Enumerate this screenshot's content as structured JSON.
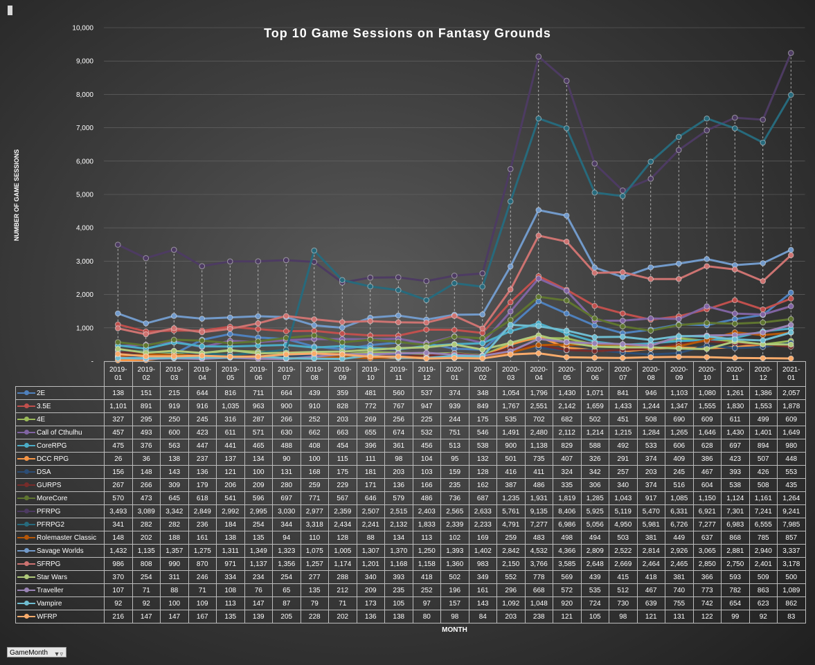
{
  "chart_data": {
    "type": "line",
    "title": "Top 10 Game Sessions on Fantasy Grounds",
    "xlabel": "MONTH",
    "ylabel": "NUMBER OF GAME SESSIONS",
    "ylim": [
      0,
      10000
    ],
    "yticks": [
      "-",
      "1,000",
      "2,000",
      "3,000",
      "4,000",
      "5,000",
      "6,000",
      "7,000",
      "8,000",
      "9,000",
      "10,000"
    ],
    "grid": true,
    "legend": "table-below",
    "categories": [
      [
        "2019-",
        "01"
      ],
      [
        "2019-",
        "02"
      ],
      [
        "2019-",
        "03"
      ],
      [
        "2019-",
        "04"
      ],
      [
        "2019-",
        "05"
      ],
      [
        "2019-",
        "06"
      ],
      [
        "2019-",
        "07"
      ],
      [
        "2019-",
        "08"
      ],
      [
        "2019-",
        "09"
      ],
      [
        "2019-",
        "10"
      ],
      [
        "2019-",
        "11"
      ],
      [
        "2019-",
        "12"
      ],
      [
        "2020-",
        "01"
      ],
      [
        "2020-",
        "02"
      ],
      [
        "2020-",
        "03"
      ],
      [
        "2020-",
        "04"
      ],
      [
        "2020-",
        "05"
      ],
      [
        "2020-",
        "06"
      ],
      [
        "2020-",
        "07"
      ],
      [
        "2020-",
        "08"
      ],
      [
        "2020-",
        "09"
      ],
      [
        "2020-",
        "10"
      ],
      [
        "2020-",
        "11"
      ],
      [
        "2020-",
        "12"
      ],
      [
        "2021-",
        "01"
      ]
    ],
    "series": [
      {
        "name": "2E",
        "color": "#4f81bd",
        "values": [
          138,
          151,
          215,
          644,
          816,
          711,
          664,
          439,
          359,
          481,
          560,
          537,
          374,
          348,
          1054,
          1796,
          1430,
          1071,
          841,
          946,
          1103,
          1080,
          1261,
          1386,
          2057
        ]
      },
      {
        "name": "3.5E",
        "color": "#c0504d",
        "values": [
          1101,
          891,
          919,
          916,
          1035,
          963,
          900,
          910,
          828,
          772,
          767,
          947,
          939,
          849,
          1767,
          2551,
          2142,
          1659,
          1433,
          1244,
          1347,
          1555,
          1830,
          1553,
          1878
        ]
      },
      {
        "name": "4E",
        "color": "#9bbb59",
        "values": [
          327,
          295,
          250,
          245,
          316,
          287,
          266,
          252,
          203,
          269,
          256,
          225,
          244,
          175,
          535,
          702,
          682,
          502,
          451,
          508,
          690,
          609,
          611,
          499,
          609
        ]
      },
      {
        "name": "Call of Cthulhu",
        "color": "#8064a2",
        "values": [
          457,
          493,
          600,
          423,
          611,
          571,
          630,
          662,
          663,
          655,
          674,
          532,
          751,
          546,
          1491,
          2480,
          2112,
          1214,
          1215,
          1284,
          1265,
          1646,
          1430,
          1401,
          1649
        ]
      },
      {
        "name": "CoreRPG",
        "color": "#4bacc6",
        "values": [
          475,
          376,
          563,
          447,
          441,
          465,
          488,
          408,
          454,
          396,
          361,
          456,
          513,
          538,
          900,
          1138,
          829,
          588,
          492,
          533,
          606,
          628,
          697,
          894,
          980
        ]
      },
      {
        "name": "DCC RPG",
        "color": "#f79646",
        "values": [
          26,
          36,
          138,
          237,
          137,
          134,
          90,
          100,
          115,
          111,
          98,
          104,
          95,
          132,
          501,
          735,
          407,
          326,
          291,
          374,
          409,
          386,
          423,
          507,
          448
        ]
      },
      {
        "name": "DSA",
        "color": "#2c4d75",
        "values": [
          156,
          148,
          143,
          136,
          121,
          100,
          131,
          168,
          175,
          181,
          203,
          103,
          159,
          128,
          416,
          411,
          324,
          342,
          257,
          203,
          245,
          467,
          393,
          426,
          553
        ]
      },
      {
        "name": "GURPS",
        "color": "#772c2a",
        "values": [
          267,
          266,
          309,
          179,
          206,
          209,
          280,
          259,
          229,
          171,
          136,
          166,
          235,
          162,
          387,
          486,
          335,
          306,
          340,
          374,
          516,
          604,
          538,
          508,
          435
        ]
      },
      {
        "name": "MoreCore",
        "color": "#5f7530",
        "values": [
          570,
          473,
          645,
          618,
          541,
          596,
          697,
          771,
          567,
          646,
          579,
          486,
          736,
          687,
          1235,
          1931,
          1819,
          1285,
          1043,
          917,
          1085,
          1150,
          1124,
          1161,
          1264
        ]
      },
      {
        "name": "PFRPG",
        "color": "#4d3b62",
        "values": [
          3493,
          3089,
          3342,
          2849,
          2992,
          2995,
          3030,
          2977,
          2359,
          2507,
          2515,
          2403,
          2565,
          2633,
          5761,
          9135,
          8406,
          5925,
          5119,
          5470,
          6331,
          6921,
          7301,
          7241,
          9241
        ]
      },
      {
        "name": "PFRPG2",
        "color": "#276a7c",
        "values": [
          341,
          282,
          282,
          236,
          184,
          254,
          344,
          3318,
          2434,
          2241,
          2132,
          1833,
          2339,
          2233,
          4791,
          7277,
          6986,
          5056,
          4950,
          5981,
          6726,
          7277,
          6983,
          6555,
          7985
        ]
      },
      {
        "name": "Rolemaster Classic",
        "color": "#b65708",
        "values": [
          148,
          202,
          188,
          161,
          138,
          135,
          94,
          110,
          128,
          88,
          134,
          113,
          102,
          169,
          259,
          483,
          498,
          494,
          503,
          381,
          449,
          637,
          868,
          785,
          857
        ]
      },
      {
        "name": "Savage Worlds",
        "color": "#729aca",
        "values": [
          1432,
          1135,
          1357,
          1275,
          1311,
          1349,
          1323,
          1075,
          1005,
          1307,
          1370,
          1250,
          1393,
          1402,
          2842,
          4532,
          4366,
          2809,
          2522,
          2814,
          2926,
          3065,
          2881,
          2940,
          3337
        ]
      },
      {
        "name": "SFRPG",
        "color": "#cd7371",
        "values": [
          986,
          808,
          990,
          870,
          971,
          1137,
          1356,
          1257,
          1174,
          1201,
          1168,
          1158,
          1360,
          983,
          2150,
          3766,
          3585,
          2648,
          2669,
          2464,
          2465,
          2850,
          2750,
          2401,
          3178
        ]
      },
      {
        "name": "Star Wars",
        "color": "#afc97a",
        "values": [
          370,
          254,
          311,
          246,
          334,
          234,
          254,
          277,
          288,
          340,
          393,
          418,
          502,
          349,
          552,
          778,
          569,
          439,
          415,
          418,
          381,
          366,
          593,
          509,
          500
        ]
      },
      {
        "name": "Traveller",
        "color": "#9983b5",
        "values": [
          107,
          71,
          88,
          71,
          108,
          76,
          65,
          135,
          212,
          209,
          235,
          252,
          196,
          161,
          296,
          668,
          572,
          535,
          512,
          467,
          740,
          773,
          782,
          863,
          1089
        ]
      },
      {
        "name": "Vampire",
        "color": "#6fbdd1",
        "values": [
          92,
          92,
          100,
          109,
          113,
          147,
          87,
          79,
          71,
          173,
          105,
          97,
          157,
          143,
          1092,
          1048,
          920,
          724,
          730,
          639,
          755,
          742,
          654,
          623,
          862
        ]
      },
      {
        "name": "WFRP",
        "color": "#f9ab6b",
        "values": [
          216,
          147,
          147,
          167,
          135,
          139,
          205,
          228,
          202,
          136,
          138,
          80,
          98,
          84,
          203,
          238,
          121,
          105,
          98,
          121,
          131,
          122,
          99,
          92,
          83
        ]
      }
    ]
  },
  "filter_button": {
    "label": "GameMonth",
    "icon": "filter-dropdown-icon"
  }
}
